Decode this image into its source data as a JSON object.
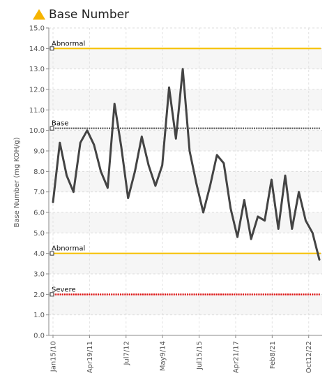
{
  "chart_data": {
    "type": "line",
    "title": "Base Number",
    "title_icon": "warning-triangle-icon",
    "title_icon_color": "#f6b400",
    "ylabel": "Base Number (mg KOH/g)",
    "xlabel": "",
    "ylim": [
      0,
      15
    ],
    "yticks": [
      "0.0",
      "1.0",
      "2.0",
      "3.0",
      "4.0",
      "5.0",
      "6.0",
      "7.0",
      "8.0",
      "9.0",
      "10.0",
      "11.0",
      "12.0",
      "13.0",
      "14.0",
      "15.0"
    ],
    "xtick_labels": [
      "Jan15/10",
      "Apr19/11",
      "Jul7/12",
      "May9/14",
      "Jul15/15",
      "Apr21/17",
      "Feb8/21",
      "Oct12/22"
    ],
    "grid": true,
    "series": [
      {
        "color": "#444444",
        "values": [
          6.5,
          9.4,
          7.8,
          7.0,
          9.4,
          10.0,
          9.3,
          8.0,
          7.2,
          11.3,
          9.2,
          6.7,
          8.0,
          9.7,
          8.3,
          7.3,
          8.3,
          12.1,
          9.6,
          13.0,
          9.0,
          7.4,
          6.0,
          7.3,
          8.8,
          8.4,
          6.2,
          4.8,
          6.6,
          4.7,
          5.8,
          5.6,
          7.6,
          5.2,
          7.8,
          5.2,
          7.0,
          5.6,
          5.0,
          3.7
        ]
      }
    ],
    "reference_lines": [
      {
        "label": "Abnormal",
        "value": 14.0,
        "color": "#f6c000",
        "style": "solid"
      },
      {
        "label": "Base",
        "value": 10.1,
        "color": "#666666",
        "style": "dotted"
      },
      {
        "label": "Abnormal",
        "value": 4.0,
        "color": "#f6c000",
        "style": "solid"
      },
      {
        "label": "Severe",
        "value": 2.0,
        "color": "#e01010",
        "style": "dotted"
      }
    ]
  }
}
